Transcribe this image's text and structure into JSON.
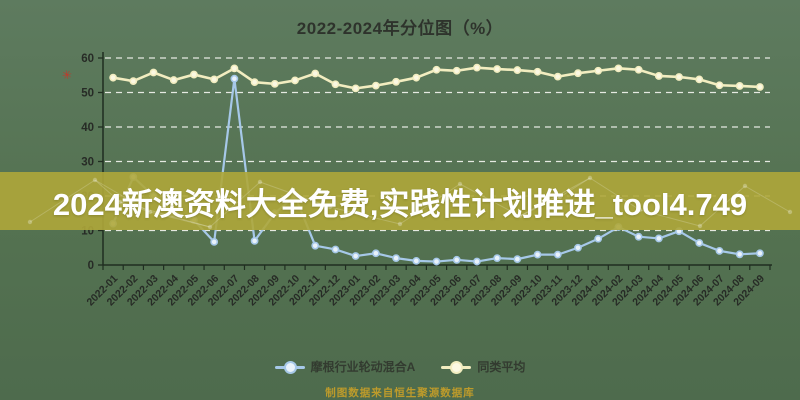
{
  "title": "2022-2024年分位图（%）",
  "banner": {
    "text": "2024新澳资料大全免费,实践性计划推进_tool4.749",
    "bg_color": "#afa73a",
    "text_color": "#ffffff"
  },
  "footer": {
    "text": "制图数据来自恒生聚源数据库",
    "color": "#bd9b2b"
  },
  "watermark": {
    "glyph": "✳",
    "color": "#c0392b"
  },
  "legend": {
    "position": "bottom",
    "items": [
      {
        "label": "摩根行业轮动混合A",
        "color": "#a6c8e8",
        "marker_fill": "#e9f2fa"
      },
      {
        "label": "同类平均",
        "color": "#f2edc0",
        "marker_fill": "#fbf8e2"
      }
    ]
  },
  "colors": {
    "background": "#547251",
    "axis": "#1f2d20",
    "grid": "#f2f4ee",
    "tick_label": "#272b26",
    "banner_overlay": "rgba(175,167,58,0.90)"
  },
  "chart_data": {
    "type": "line",
    "title": "2022-2024年分位图（%）",
    "xlabel": "",
    "ylabel": "",
    "ylim": [
      0,
      60
    ],
    "y_ticks": [
      0,
      10,
      20,
      30,
      40,
      50,
      60
    ],
    "grid": "horizontal-dashed-white",
    "legend_position": "bottom",
    "categories": [
      "2022-01",
      "2022-02",
      "2022-03",
      "2022-04",
      "2022-05",
      "2022-06",
      "2022-07",
      "2022-08",
      "2022-09",
      "2022-10",
      "2022-11",
      "2022-12",
      "2023-01",
      "2023-02",
      "2023-03",
      "2023-04",
      "2023-05",
      "2023-06",
      "2023-07",
      "2023-08",
      "2023-09",
      "2023-10",
      "2023-11",
      "2023-12",
      "2024-01",
      "2024-02",
      "2024-03",
      "2024-04",
      "2024-05",
      "2024-06",
      "2024-07",
      "2024-08",
      "2024-09"
    ],
    "series": [
      {
        "name": "摩根行业轮动混合A",
        "color": "#a6c8e8",
        "marker_fill": "#e9f2fa",
        "values": [
          12,
          25.5,
          20,
          15,
          13,
          6.7,
          54,
          7,
          15,
          20,
          5.6,
          4.5,
          2.6,
          3.4,
          2,
          1.2,
          1,
          1.5,
          1,
          2,
          1.7,
          3,
          3,
          5,
          7.6,
          11,
          8.2,
          7.7,
          9.8,
          6.4,
          4.1,
          3.1,
          3.4
        ]
      },
      {
        "name": "同类平均",
        "color": "#f2edc0",
        "marker_fill": "#fbf8e2",
        "values": [
          54.3,
          53.3,
          55.8,
          53.6,
          55.2,
          53.8,
          57,
          53,
          52.5,
          53.5,
          55.5,
          52.4,
          51.2,
          52,
          53.1,
          54.3,
          56.6,
          56.3,
          57.2,
          56.8,
          56.5,
          56,
          54.6,
          55.6,
          56.3,
          57,
          56.6,
          54.8,
          54.5,
          53.8,
          52.1,
          51.9,
          51.6
        ]
      }
    ]
  }
}
